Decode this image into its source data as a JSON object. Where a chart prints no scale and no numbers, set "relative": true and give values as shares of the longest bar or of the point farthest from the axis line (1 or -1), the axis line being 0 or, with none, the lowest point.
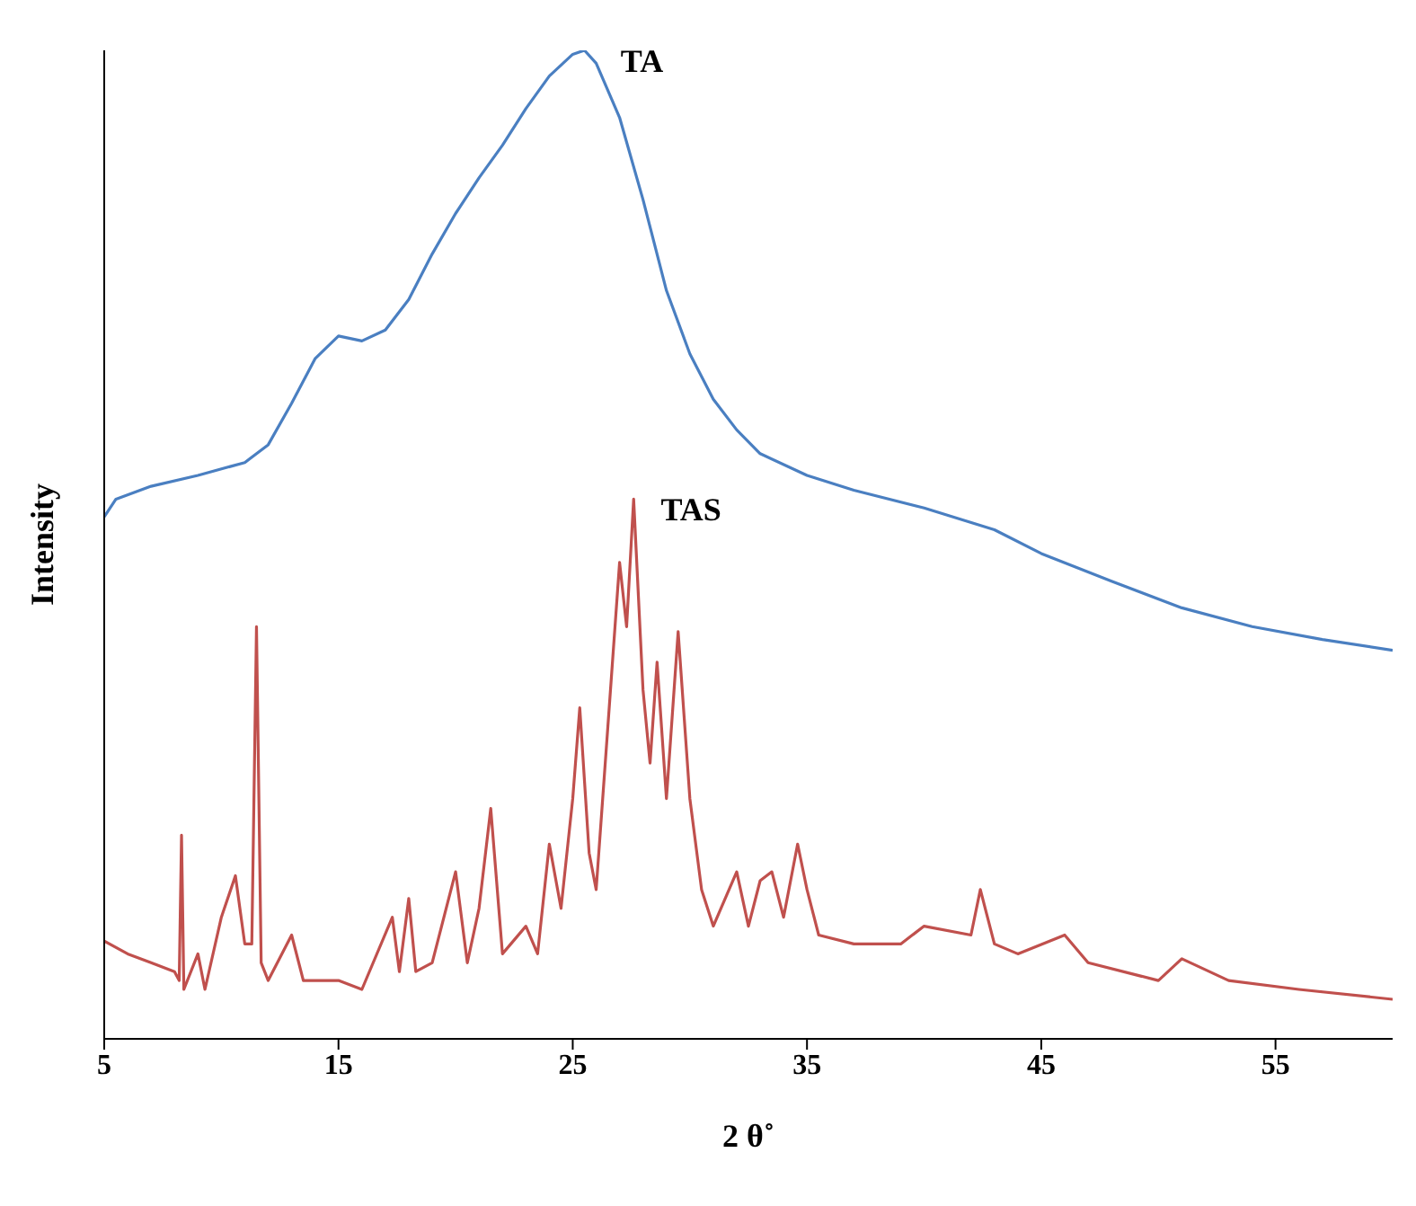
{
  "chart_data": {
    "type": "line",
    "xlabel": "2 θ˚",
    "ylabel": "Intensity",
    "xlim": [
      5,
      60
    ],
    "xticks": [
      5,
      15,
      25,
      35,
      45,
      55
    ],
    "relative": true,
    "marker": "none",
    "series": [
      {
        "name": "TA",
        "color": "#4a7fc1",
        "x": [
          5,
          5.5,
          7,
          9,
          11,
          12,
          13,
          14,
          15,
          16,
          17,
          18,
          19,
          20,
          21,
          22,
          23,
          24,
          25,
          25.5,
          26,
          27,
          28,
          29,
          30,
          31,
          32,
          33,
          35,
          37,
          40,
          43,
          45,
          48,
          51,
          54,
          57,
          60
        ],
        "values": [
          0.528,
          0.546,
          0.559,
          0.57,
          0.583,
          0.601,
          0.643,
          0.688,
          0.711,
          0.706,
          0.717,
          0.748,
          0.794,
          0.835,
          0.871,
          0.904,
          0.941,
          0.974,
          0.996,
          1,
          0.987,
          0.932,
          0.849,
          0.757,
          0.693,
          0.647,
          0.616,
          0.592,
          0.57,
          0.555,
          0.537,
          0.515,
          0.491,
          0.463,
          0.436,
          0.417,
          0.404,
          0.393
        ]
      },
      {
        "name": "TAS",
        "color": "#c0504d",
        "x": [
          5,
          6,
          7,
          8,
          8.2,
          8.3,
          8.4,
          9,
          9.3,
          10,
          10.6,
          11,
          11.3,
          11.5,
          11.7,
          12,
          13,
          13.5,
          15,
          16,
          17.3,
          17.6,
          18,
          18.3,
          19,
          20,
          20.5,
          21,
          21.5,
          22,
          23,
          23.5,
          24,
          24.5,
          25,
          25.3,
          25.7,
          26,
          26.5,
          27,
          27.3,
          27.6,
          28,
          28.3,
          28.6,
          29,
          29.5,
          30,
          30.5,
          31,
          32,
          32.5,
          33,
          33.5,
          34,
          34.6,
          35,
          35.5,
          37,
          39,
          40,
          42,
          42.4,
          43,
          44,
          46,
          47,
          50,
          51,
          53,
          56,
          60
        ],
        "values": [
          0.099,
          0.086,
          0.077,
          0.068,
          0.059,
          0.206,
          0.05,
          0.086,
          0.05,
          0.123,
          0.165,
          0.096,
          0.096,
          0.417,
          0.077,
          0.059,
          0.105,
          0.059,
          0.059,
          0.05,
          0.123,
          0.068,
          0.142,
          0.068,
          0.077,
          0.169,
          0.077,
          0.132,
          0.233,
          0.086,
          0.114,
          0.086,
          0.197,
          0.132,
          0.243,
          0.335,
          0.188,
          0.151,
          0.316,
          0.482,
          0.417,
          0.546,
          0.353,
          0.279,
          0.381,
          0.243,
          0.412,
          0.243,
          0.151,
          0.114,
          0.169,
          0.114,
          0.16,
          0.169,
          0.123,
          0.197,
          0.151,
          0.105,
          0.096,
          0.096,
          0.114,
          0.105,
          0.151,
          0.096,
          0.086,
          0.105,
          0.077,
          0.059,
          0.081,
          0.059,
          0.05,
          0.04
        ]
      }
    ]
  }
}
